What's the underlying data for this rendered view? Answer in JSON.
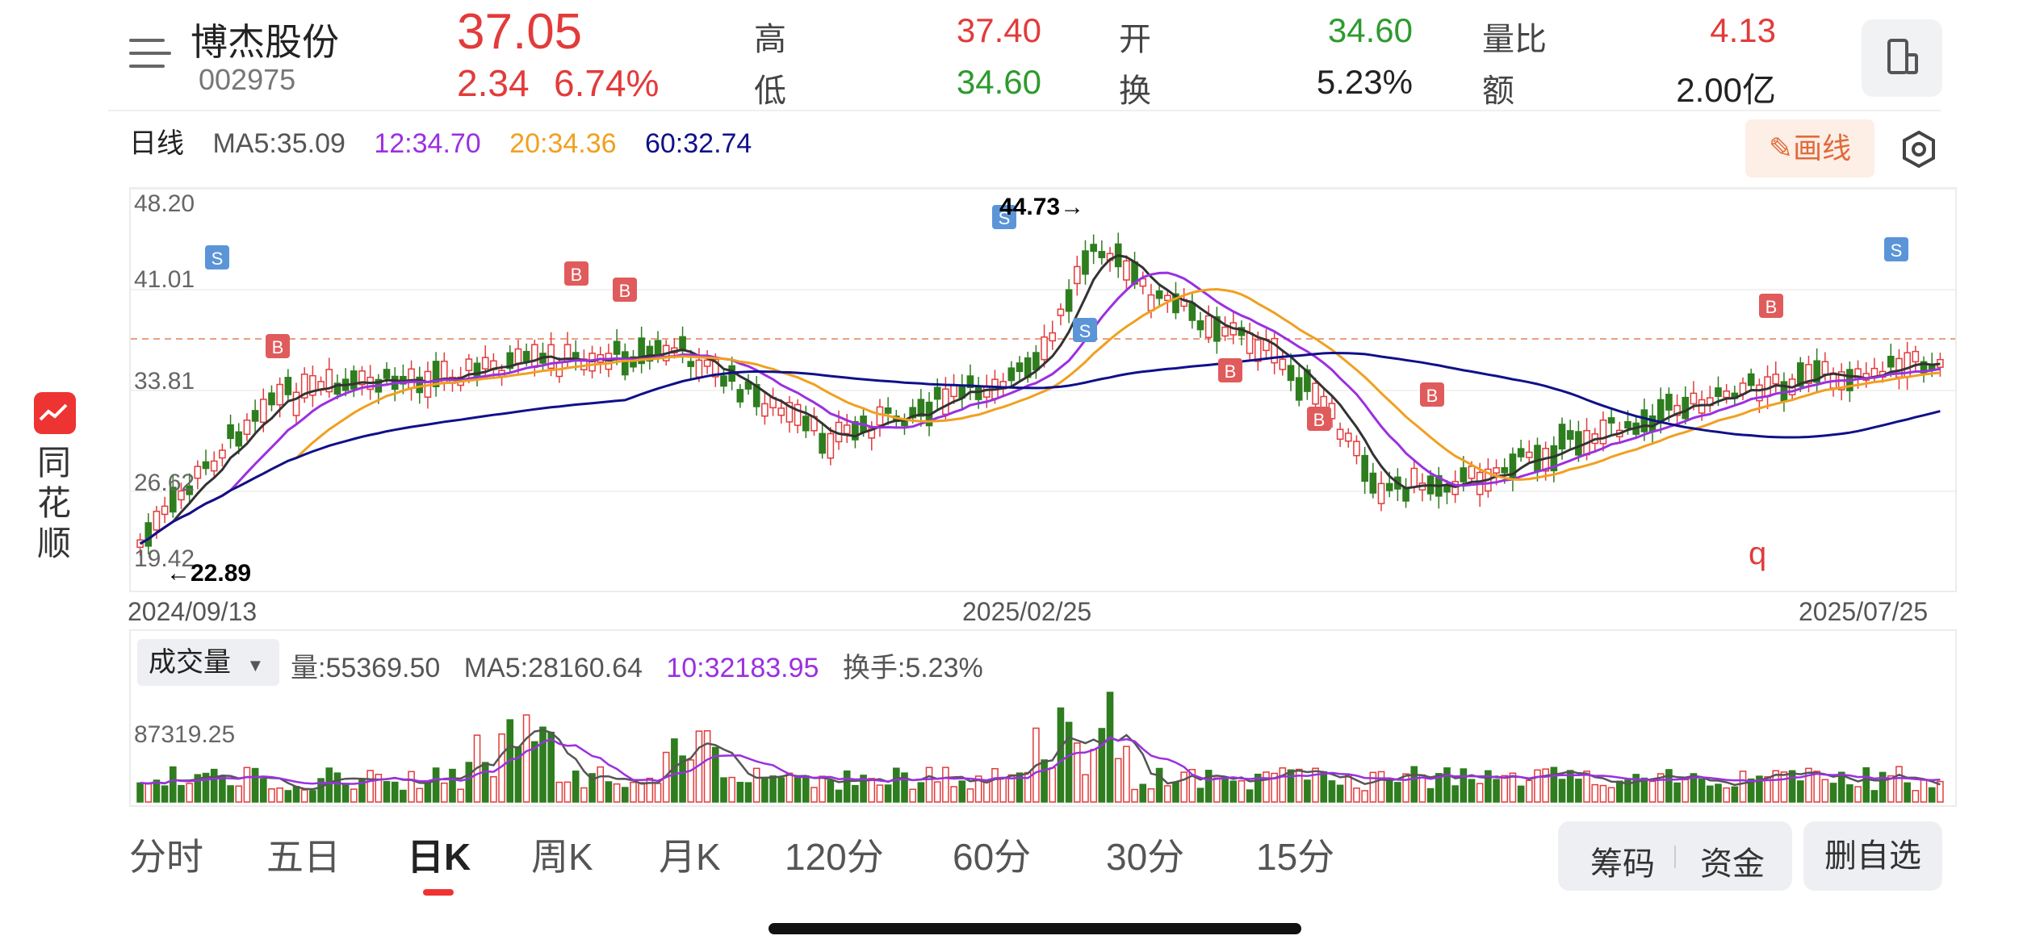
{
  "stock": {
    "name": "博杰股份",
    "code": "002975",
    "price": "37.05",
    "change": "2.34",
    "change_pct": "6.74%",
    "high_label": "高",
    "high": "37.40",
    "low_label": "低",
    "low": "34.60",
    "open_label": "开",
    "open": "34.60",
    "turnover_label": "换",
    "turnover": "5.23%",
    "vol_ratio_label": "量比",
    "vol_ratio": "4.13",
    "amount_label": "额",
    "amount": "2.00亿"
  },
  "side": {
    "chars": [
      "同",
      "花",
      "顺"
    ]
  },
  "ma": {
    "period": "日线",
    "ma5": "MA5:35.09",
    "ma12": "12:34.70",
    "ma20": "20:34.36",
    "ma60": "60:32.74"
  },
  "toolbar": {
    "draw_label": "画线"
  },
  "chart": {
    "yticks": [
      "48.20",
      "41.01",
      "33.81",
      "26.62",
      "19.42"
    ],
    "max_label": "44.73→",
    "min_label": "←22.89",
    "dates": [
      "2024/09/13",
      "2025/02/25",
      "2025/07/25"
    ],
    "q_label": "q",
    "signals": [
      {
        "t": "S",
        "c": "#5b95d8"
      },
      {
        "t": "B",
        "c": "#e05b5b"
      },
      {
        "t": "S",
        "c": "#5b95d8"
      }
    ]
  },
  "volume": {
    "selector": "成交量",
    "vol": "量:55369.50",
    "ma5": "MA5:28160.64",
    "ma10": "10:32183.95",
    "turnover": "换手:5.23%",
    "ytick": "87319.25"
  },
  "tabs": [
    "分时",
    "五日",
    "日K",
    "周K",
    "月K",
    "120分",
    "60分",
    "30分",
    "15分"
  ],
  "actions": {
    "chips": "筹码",
    "funds": "资金",
    "remove": "删自选"
  },
  "colors": {
    "up": "#e23b3b",
    "down": "#2e7d1e",
    "ma5": "#333333",
    "ma12": "#9b30e0",
    "ma20": "#f0a020",
    "ma60": "#10108a"
  }
}
